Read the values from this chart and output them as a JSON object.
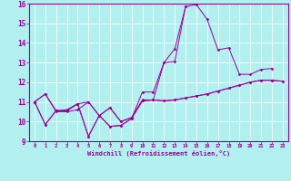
{
  "xlabel": "Windchill (Refroidissement éolien,°C)",
  "background_color": "#b2f0f0",
  "line_color": "#990099",
  "grid_color": "#ffffff",
  "xlim": [
    -0.5,
    23.5
  ],
  "ylim": [
    9,
    16
  ],
  "xticks": [
    0,
    1,
    2,
    3,
    4,
    5,
    6,
    7,
    8,
    9,
    10,
    11,
    12,
    13,
    14,
    15,
    16,
    17,
    18,
    19,
    20,
    21,
    22,
    23
  ],
  "yticks": [
    9,
    10,
    11,
    12,
    13,
    14,
    15,
    16
  ],
  "series": [
    [
      11.0,
      11.4,
      10.5,
      10.5,
      10.6,
      11.0,
      10.3,
      10.7,
      10.0,
      10.2,
      11.1,
      11.1,
      11.05,
      11.1,
      11.2,
      11.3,
      11.4,
      11.55,
      11.7,
      11.85,
      12.0,
      12.1,
      12.1,
      12.05
    ],
    [
      11.0,
      9.85,
      10.55,
      10.55,
      10.9,
      9.25,
      10.3,
      9.75,
      9.8,
      10.15,
      11.05,
      11.1,
      13.0,
      13.05,
      15.85,
      15.95,
      15.2,
      13.65,
      13.75,
      12.4,
      12.4,
      12.65,
      12.7,
      null
    ],
    [
      11.0,
      9.85,
      10.55,
      10.55,
      10.9,
      9.25,
      10.3,
      9.75,
      9.8,
      10.15,
      11.5,
      11.5,
      13.0,
      13.7,
      15.85,
      null,
      null,
      null,
      null,
      null,
      null,
      null,
      null,
      null
    ],
    [
      11.0,
      11.4,
      10.55,
      10.6,
      10.9,
      11.0,
      10.3,
      10.7,
      10.0,
      10.2,
      11.05,
      11.1,
      11.05,
      11.1,
      11.2,
      11.3,
      11.4,
      11.55,
      11.7,
      11.85,
      12.0,
      12.1,
      12.1,
      12.05
    ]
  ]
}
